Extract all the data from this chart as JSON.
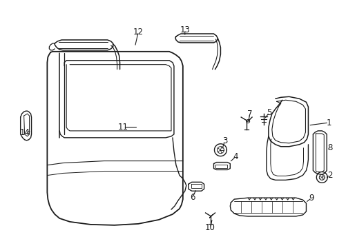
{
  "background_color": "#ffffff",
  "line_color": "#1a1a1a",
  "figsize": [
    4.89,
    3.6
  ],
  "dpi": 100,
  "label_fontsize": 8.5
}
